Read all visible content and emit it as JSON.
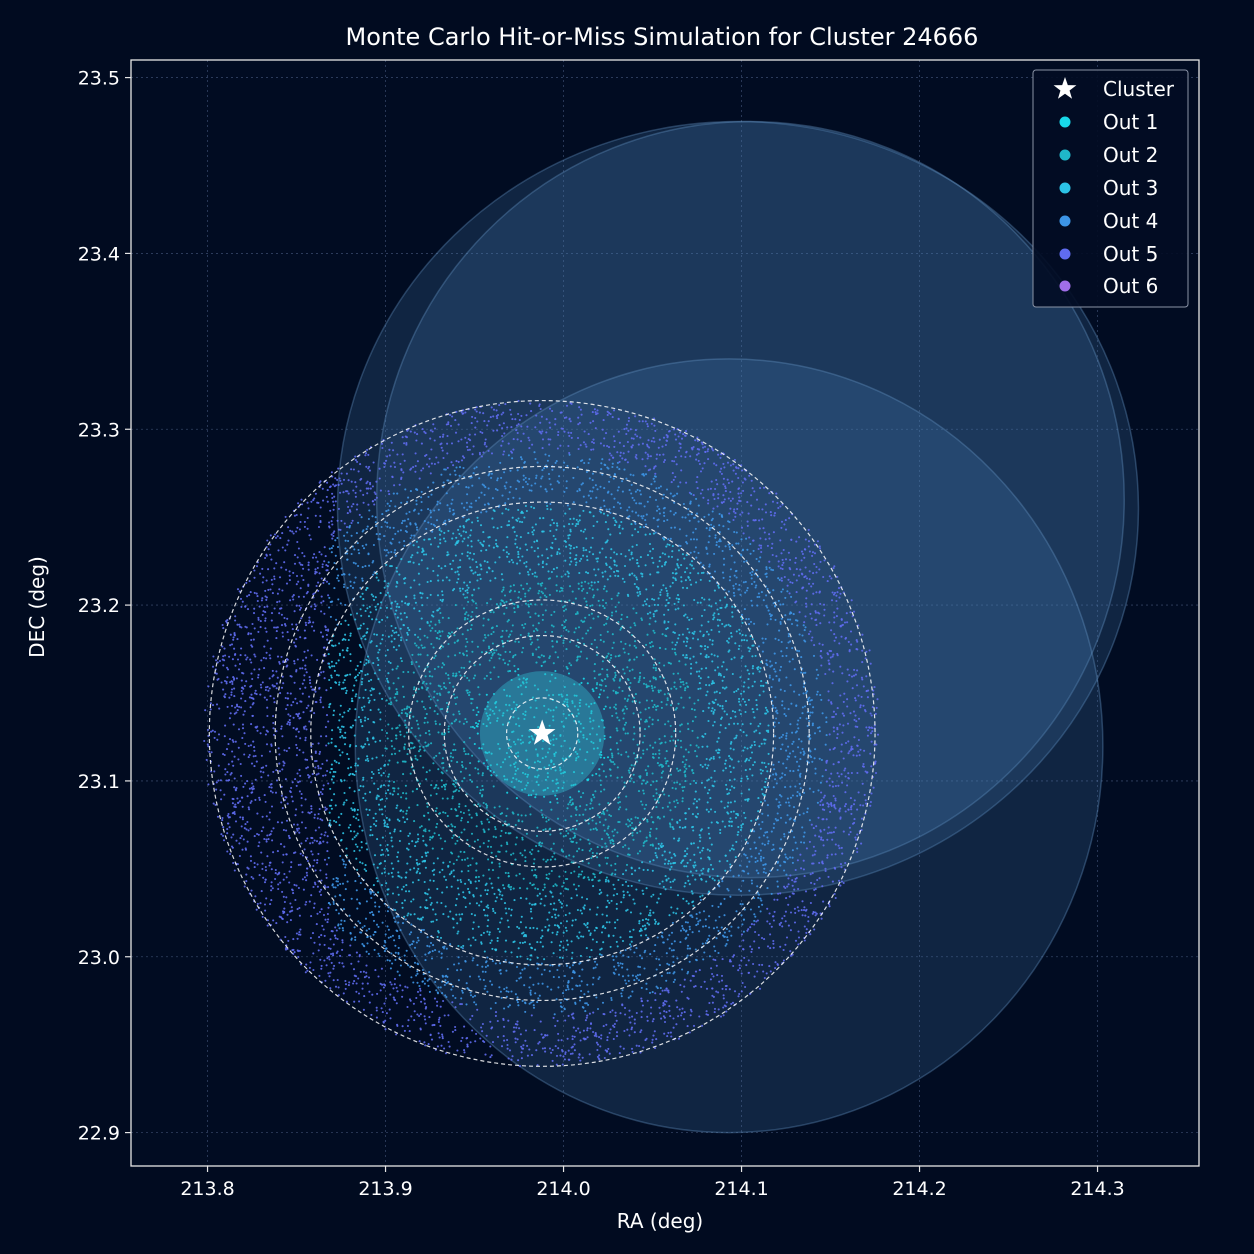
{
  "chart_data": {
    "type": "scatter",
    "title": "Monte Carlo Hit-or-Miss Simulation for Cluster 24666",
    "xlabel": "RA (deg)",
    "ylabel": "DEC (deg)",
    "xlim": [
      213.757,
      214.357
    ],
    "ylim": [
      22.881,
      23.51
    ],
    "xticks": [
      213.8,
      213.9,
      214.0,
      214.1,
      214.2,
      214.3
    ],
    "xtick_labels": [
      "213.8",
      "213.9",
      "214.0",
      "214.1",
      "214.2",
      "214.3"
    ],
    "yticks": [
      22.9,
      23.0,
      23.1,
      23.2,
      23.3,
      23.4,
      23.5
    ],
    "ytick_labels": [
      "22.9",
      "23.0",
      "23.1",
      "23.2",
      "23.3",
      "23.4",
      "23.5"
    ],
    "grid": true,
    "legend_position": "top-right",
    "cluster": {
      "name": "Cluster",
      "ra": 213.988,
      "dec": 23.127,
      "color": "#ffffff"
    },
    "ring_radii_deg": [
      0.02,
      0.055,
      0.075,
      0.13,
      0.15,
      0.187
    ],
    "series": [
      {
        "name": "Out 1",
        "color": "#18d8e8",
        "r_inner": 0.0,
        "r_outer": 0.04
      },
      {
        "name": "Out 2",
        "color": "#1fb8c9",
        "r_inner": 0.04,
        "r_outer": 0.09
      },
      {
        "name": "Out 3",
        "color": "#2cc3e6",
        "r_inner": 0.09,
        "r_outer": 0.13
      },
      {
        "name": "Out 4",
        "color": "#3d95e6",
        "r_inner": 0.13,
        "r_outer": 0.16
      },
      {
        "name": "Out 5",
        "color": "#5f6cf0",
        "r_inner": 0.16,
        "r_outer": 0.19
      },
      {
        "name": "Out 6",
        "color": "#a06ee8",
        "r_inner": 0.19,
        "r_outer": 0.19
      }
    ],
    "halos": [
      {
        "ra": 214.098,
        "dec": 23.255,
        "r_ra": 0.225,
        "r_dec": 0.22
      },
      {
        "ra": 214.105,
        "dec": 23.26,
        "r_ra": 0.21,
        "r_dec": 0.215
      },
      {
        "ra": 214.093,
        "dec": 23.12,
        "r_ra": 0.21,
        "r_dec": 0.22
      }
    ]
  }
}
